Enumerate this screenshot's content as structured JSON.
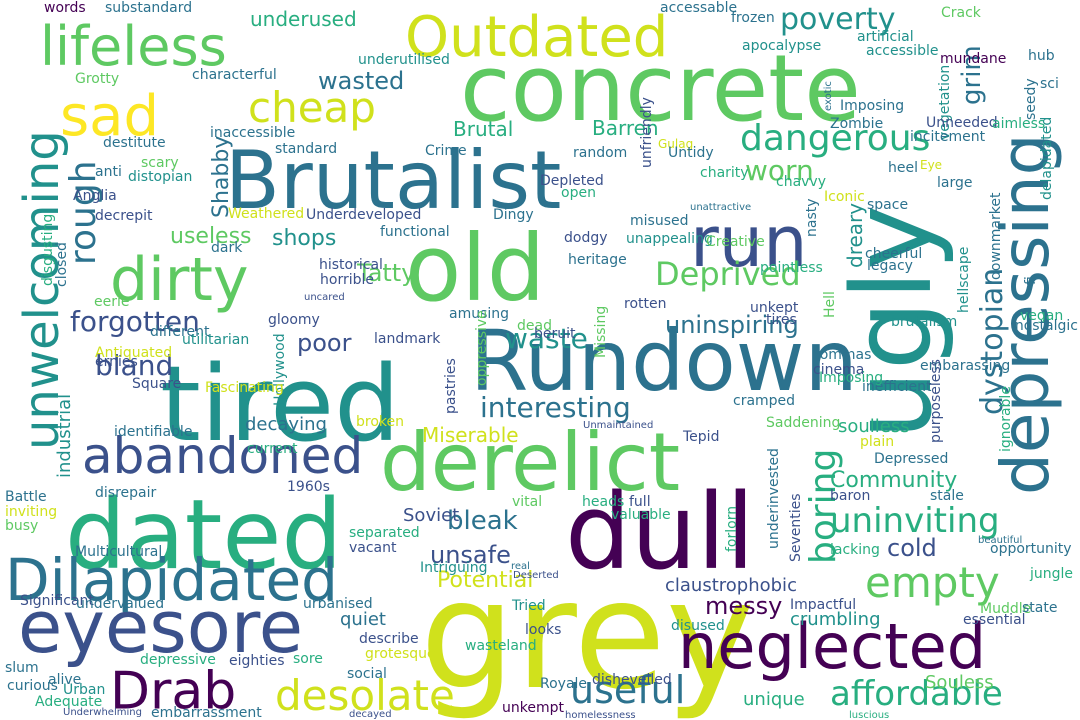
{
  "colors": {
    "background": "#ffffff",
    "palette": {
      "dark_purple": "#440154",
      "indigo": "#3b518b",
      "teal_blue": "#2c728e",
      "teal": "#21918c",
      "green_teal": "#28ae80",
      "green": "#5ec962",
      "lime": "#addc30",
      "yellow_green": "#d0e11c",
      "yellow": "#fde725"
    }
  },
  "words": [
    {
      "text": "grey",
      "color": "yellow_green"
    },
    {
      "text": "concrete",
      "color": "green"
    },
    {
      "text": "dated",
      "color": "green_teal"
    },
    {
      "text": "tired",
      "color": "teal"
    },
    {
      "text": "dull",
      "color": "dark_purple"
    },
    {
      "text": "Brutalist",
      "color": "teal_blue"
    },
    {
      "text": "old",
      "color": "green"
    },
    {
      "text": "ugly",
      "color": "teal"
    },
    {
      "text": "Rundown",
      "color": "teal_blue"
    },
    {
      "text": "derelict",
      "color": "green"
    },
    {
      "text": "eyesore",
      "color": "indigo"
    },
    {
      "text": "depressing",
      "color": "teal_blue"
    },
    {
      "text": "neglected",
      "color": "dark_purple"
    },
    {
      "text": "Dilapidated",
      "color": "teal_blue"
    },
    {
      "text": "Outdated",
      "color": "yellow_green"
    },
    {
      "text": "lifeless",
      "color": "green"
    },
    {
      "text": "sad",
      "color": "yellow"
    },
    {
      "text": "run",
      "color": "indigo"
    },
    {
      "text": "dirty",
      "color": "green"
    },
    {
      "text": "Drab",
      "color": "dark_purple"
    },
    {
      "text": "unwelcoming",
      "color": "teal"
    },
    {
      "text": "abandoned",
      "color": "indigo"
    },
    {
      "text": "desolate",
      "color": "yellow_green"
    },
    {
      "text": "cheap",
      "color": "yellow_green"
    },
    {
      "text": "empty",
      "color": "green"
    },
    {
      "text": "affordable",
      "color": "green_teal"
    },
    {
      "text": "uninviting",
      "color": "green_teal"
    },
    {
      "text": "useful",
      "color": "teal_blue"
    },
    {
      "text": "dangerous",
      "color": "green_teal"
    },
    {
      "text": "boring",
      "color": "green_teal"
    },
    {
      "text": "Deprived",
      "color": "green"
    },
    {
      "text": "rough",
      "color": "teal_blue"
    },
    {
      "text": "forgotten",
      "color": "indigo"
    },
    {
      "text": "dystopian",
      "color": "teal_blue"
    },
    {
      "text": "poverty",
      "color": "teal"
    },
    {
      "text": "worn",
      "color": "green"
    },
    {
      "text": "grim",
      "color": "teal_blue"
    },
    {
      "text": "interesting",
      "color": "teal_blue"
    },
    {
      "text": "uninspiring",
      "color": "teal_blue"
    },
    {
      "text": "waste",
      "color": "teal"
    },
    {
      "text": "bleak",
      "color": "teal_blue"
    },
    {
      "text": "Tatty",
      "color": "green"
    },
    {
      "text": "poor",
      "color": "indigo"
    },
    {
      "text": "unsafe",
      "color": "indigo"
    },
    {
      "text": "bland",
      "color": "indigo"
    },
    {
      "text": "Community",
      "color": "green_teal"
    },
    {
      "text": "messy",
      "color": "dark_purple"
    },
    {
      "text": "cold",
      "color": "indigo"
    },
    {
      "text": "Miserable",
      "color": "yellow_green"
    },
    {
      "text": "Potential",
      "color": "yellow_green"
    },
    {
      "text": "wasted",
      "color": "teal_blue"
    },
    {
      "text": "Shabby",
      "color": "teal_blue"
    },
    {
      "text": "shops",
      "color": "teal"
    },
    {
      "text": "useless",
      "color": "green"
    },
    {
      "text": "underused",
      "color": "green_teal"
    },
    {
      "text": "Brutal",
      "color": "green_teal"
    },
    {
      "text": "Barren",
      "color": "green_teal"
    },
    {
      "text": "dreary",
      "color": "teal"
    },
    {
      "text": "industrial",
      "color": "teal"
    },
    {
      "text": "decaying",
      "color": "teal_blue"
    },
    {
      "text": "soulless",
      "color": "green_teal"
    },
    {
      "text": "Soviet",
      "color": "indigo"
    },
    {
      "text": "quiet",
      "color": "teal_blue"
    },
    {
      "text": "claustrophobic",
      "color": "indigo"
    },
    {
      "text": "crumbling",
      "color": "teal"
    },
    {
      "text": "unique",
      "color": "green_teal"
    },
    {
      "text": "Souless",
      "color": "green"
    },
    {
      "text": "Grotty",
      "color": "green"
    },
    {
      "text": "characterful",
      "color": "teal_blue"
    },
    {
      "text": "words",
      "color": "dark_purple"
    },
    {
      "text": "substandard",
      "color": "teal_blue"
    },
    {
      "text": "underutilised",
      "color": "teal"
    },
    {
      "text": "accessable",
      "color": "teal_blue"
    },
    {
      "text": "frozen",
      "color": "teal_blue"
    },
    {
      "text": "Crack",
      "color": "green"
    },
    {
      "text": "mundane",
      "color": "dark_purple"
    },
    {
      "text": "apocalypse",
      "color": "teal"
    },
    {
      "text": "artificial",
      "color": "teal"
    },
    {
      "text": "hub",
      "color": "teal_blue"
    },
    {
      "text": "accessible",
      "color": "teal"
    },
    {
      "text": "exotic",
      "color": "teal_blue"
    },
    {
      "text": "unfriendly",
      "color": "indigo"
    },
    {
      "text": "Imposing",
      "color": "teal_blue"
    },
    {
      "text": "vegetation",
      "color": "teal"
    },
    {
      "text": "sci",
      "color": "teal_blue"
    },
    {
      "text": "seedy",
      "color": "teal_blue"
    },
    {
      "text": "Unneeded",
      "color": "indigo"
    },
    {
      "text": "aimless",
      "color": "green_teal"
    },
    {
      "text": "destitute",
      "color": "teal_blue"
    },
    {
      "text": "inaccessible",
      "color": "teal_blue"
    },
    {
      "text": "standard",
      "color": "teal_blue"
    },
    {
      "text": "Crime",
      "color": "teal_blue"
    },
    {
      "text": "random",
      "color": "teal_blue"
    },
    {
      "text": "Gulag",
      "color": "yellow_green"
    },
    {
      "text": "Untidy",
      "color": "teal_blue"
    },
    {
      "text": "Zombie",
      "color": "teal_blue"
    },
    {
      "text": "incitement",
      "color": "teal_blue"
    },
    {
      "text": "heel",
      "color": "teal_blue"
    },
    {
      "text": "Eye",
      "color": "yellow_green"
    },
    {
      "text": "large",
      "color": "teal_blue"
    },
    {
      "text": "delapidated",
      "color": "teal"
    },
    {
      "text": "scary",
      "color": "green"
    },
    {
      "text": "anti",
      "color": "teal_blue"
    },
    {
      "text": "distopian",
      "color": "teal"
    },
    {
      "text": "Anglia",
      "color": "indigo"
    },
    {
      "text": "decrepit",
      "color": "indigo"
    },
    {
      "text": "Weathered",
      "color": "yellow_green"
    },
    {
      "text": "Underdeveloped",
      "color": "indigo"
    },
    {
      "text": "Dingy",
      "color": "teal_blue"
    },
    {
      "text": "open",
      "color": "green_teal"
    },
    {
      "text": "Depleted",
      "color": "indigo"
    },
    {
      "text": "charity",
      "color": "green_teal"
    },
    {
      "text": "chavvy",
      "color": "green_teal"
    },
    {
      "text": "Iconic",
      "color": "yellow_green"
    },
    {
      "text": "nasty",
      "color": "teal_blue"
    },
    {
      "text": "space",
      "color": "teal_blue"
    },
    {
      "text": "unattractive",
      "color": "teal_blue"
    },
    {
      "text": "misused",
      "color": "teal_blue"
    },
    {
      "text": "dodgy",
      "color": "indigo"
    },
    {
      "text": "unappealing",
      "color": "teal"
    },
    {
      "text": "disgusting",
      "color": "green_teal"
    },
    {
      "text": "closed",
      "color": "teal_blue"
    },
    {
      "text": "dark",
      "color": "teal_blue"
    },
    {
      "text": "functional",
      "color": "teal_blue"
    },
    {
      "text": "heritage",
      "color": "teal_blue"
    },
    {
      "text": "historical",
      "color": "indigo"
    },
    {
      "text": "horrible",
      "color": "indigo"
    },
    {
      "text": "Creative",
      "color": "green"
    },
    {
      "text": "pointless",
      "color": "green_teal"
    },
    {
      "text": "cheerful",
      "color": "teal_blue"
    },
    {
      "text": "legacy",
      "color": "teal_blue"
    },
    {
      "text": "fi",
      "color": "teal_blue"
    },
    {
      "text": "downmarket",
      "color": "teal_blue"
    },
    {
      "text": "eerie",
      "color": "green"
    },
    {
      "text": "uncared",
      "color": "indigo"
    },
    {
      "text": "different",
      "color": "teal_blue"
    },
    {
      "text": "gloomy",
      "color": "indigo"
    },
    {
      "text": "amusing",
      "color": "teal_blue"
    },
    {
      "text": "dead",
      "color": "green"
    },
    {
      "text": "Missing",
      "color": "green"
    },
    {
      "text": "rotten",
      "color": "indigo"
    },
    {
      "text": "unkept",
      "color": "indigo"
    },
    {
      "text": "tires",
      "color": "indigo"
    },
    {
      "text": "brutalism",
      "color": "teal"
    },
    {
      "text": "hellscape",
      "color": "teal"
    },
    {
      "text": "Hell",
      "color": "green"
    },
    {
      "text": "vegan",
      "color": "green_teal"
    },
    {
      "text": "nostalgic",
      "color": "teal_blue"
    },
    {
      "text": "Antiquated",
      "color": "yellow_green"
    },
    {
      "text": "utilitarian",
      "color": "teal"
    },
    {
      "text": "beruit",
      "color": "indigo"
    },
    {
      "text": "landmark",
      "color": "indigo"
    },
    {
      "text": "oppressive",
      "color": "green"
    },
    {
      "text": "Hollywood",
      "color": "teal"
    },
    {
      "text": "ernies",
      "color": "indigo"
    },
    {
      "text": "Square",
      "color": "indigo"
    },
    {
      "text": "Fascinating",
      "color": "yellow_green"
    },
    {
      "text": "pastries",
      "color": "indigo"
    },
    {
      "text": "commas",
      "color": "teal_blue"
    },
    {
      "text": "cinema",
      "color": "indigo"
    },
    {
      "text": "inefficient",
      "color": "teal_blue"
    },
    {
      "text": "Imposing",
      "color": "green_teal"
    },
    {
      "text": "identifiable",
      "color": "teal_blue"
    },
    {
      "text": "broken",
      "color": "yellow_green"
    },
    {
      "text": "Unmaintained",
      "color": "indigo"
    },
    {
      "text": "cramped",
      "color": "teal_blue"
    },
    {
      "text": "Saddening",
      "color": "green"
    },
    {
      "text": "embarassing",
      "color": "teal_blue"
    },
    {
      "text": "purposeless",
      "color": "indigo"
    },
    {
      "text": "ignorable",
      "color": "green_teal"
    },
    {
      "text": "Tepid",
      "color": "indigo"
    },
    {
      "text": "plain",
      "color": "yellow_green"
    },
    {
      "text": "Depressed",
      "color": "teal_blue"
    },
    {
      "text": "disrepair",
      "color": "teal_blue"
    },
    {
      "text": "current",
      "color": "green_teal"
    },
    {
      "text": "1960s",
      "color": "indigo"
    },
    {
      "text": "underinvested",
      "color": "teal_blue"
    },
    {
      "text": "Seventies",
      "color": "indigo"
    },
    {
      "text": "baron",
      "color": "indigo"
    },
    {
      "text": "stale",
      "color": "teal_blue"
    },
    {
      "text": "Battle",
      "color": "teal_blue"
    },
    {
      "text": "inviting",
      "color": "yellow_green"
    },
    {
      "text": "busy",
      "color": "green"
    },
    {
      "text": "vital",
      "color": "green"
    },
    {
      "text": "heads",
      "color": "green_teal"
    },
    {
      "text": "full",
      "color": "indigo"
    },
    {
      "text": "valuable",
      "color": "green_teal"
    },
    {
      "text": "separated",
      "color": "green_teal"
    },
    {
      "text": "vacant",
      "color": "indigo"
    },
    {
      "text": "Multicultural",
      "color": "teal_blue"
    },
    {
      "text": "forlorn",
      "color": "green_teal"
    },
    {
      "text": "beautiful",
      "color": "teal_blue"
    },
    {
      "text": "opportunity",
      "color": "teal_blue"
    },
    {
      "text": "lacking",
      "color": "green_teal"
    },
    {
      "text": "Intriguing",
      "color": "teal"
    },
    {
      "text": "real",
      "color": "teal_blue"
    },
    {
      "text": "Deserted",
      "color": "indigo"
    },
    {
      "text": "jungle",
      "color": "green_teal"
    },
    {
      "text": "Significant",
      "color": "indigo"
    },
    {
      "text": "undervalued",
      "color": "teal_blue"
    },
    {
      "text": "urbanised",
      "color": "teal_blue"
    },
    {
      "text": "Tried",
      "color": "teal"
    },
    {
      "text": "Impactful",
      "color": "indigo"
    },
    {
      "text": "Muddle",
      "color": "green"
    },
    {
      "text": "state",
      "color": "teal_blue"
    },
    {
      "text": "essential",
      "color": "indigo"
    },
    {
      "text": "describe",
      "color": "indigo"
    },
    {
      "text": "looks",
      "color": "indigo"
    },
    {
      "text": "disused",
      "color": "teal"
    },
    {
      "text": "wasteland",
      "color": "green_teal"
    },
    {
      "text": "slum",
      "color": "teal_blue"
    },
    {
      "text": "depressive",
      "color": "green_teal"
    },
    {
      "text": "eighties",
      "color": "indigo"
    },
    {
      "text": "sore",
      "color": "green_teal"
    },
    {
      "text": "grotesque",
      "color": "yellow_green"
    },
    {
      "text": "curious",
      "color": "teal_blue"
    },
    {
      "text": "alive",
      "color": "teal_blue"
    },
    {
      "text": "Urban",
      "color": "teal"
    },
    {
      "text": "social",
      "color": "teal_blue"
    },
    {
      "text": "Royale",
      "color": "teal_blue"
    },
    {
      "text": "dishevelled",
      "color": "indigo"
    },
    {
      "text": "Adequate",
      "color": "green_teal"
    },
    {
      "text": "Underwhelming",
      "color": "indigo"
    },
    {
      "text": "embarrassment",
      "color": "teal_blue"
    },
    {
      "text": "decayed",
      "color": "indigo"
    },
    {
      "text": "unkempt",
      "color": "dark_purple"
    },
    {
      "text": "homelessness",
      "color": "indigo"
    },
    {
      "text": "luscious",
      "color": "green_teal"
    }
  ]
}
